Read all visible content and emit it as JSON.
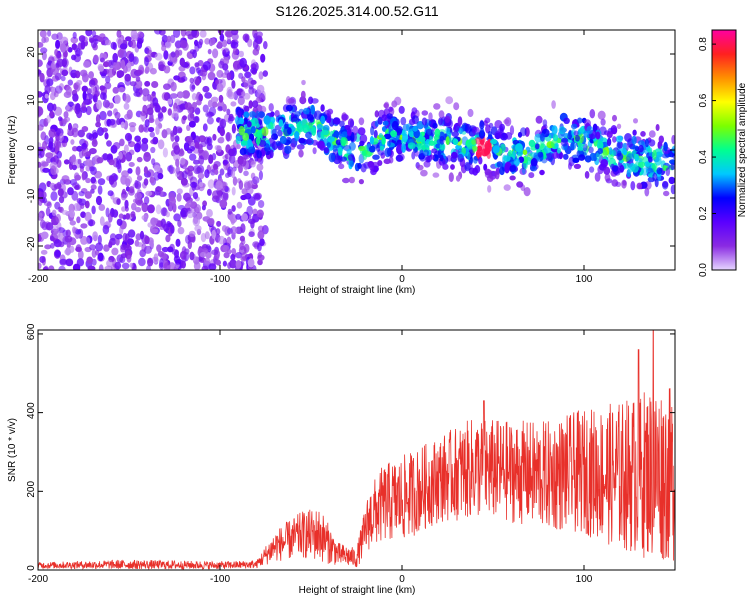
{
  "title": "S126.2025.314.00.52.G11",
  "chart_data": [
    {
      "type": "heatmap",
      "xlabel": "Height of straight line (km)",
      "ylabel": "Frequency (Hz)",
      "xlim": [
        -200,
        150
      ],
      "ylim": [
        -25,
        25
      ],
      "xticks": [
        -200,
        -100,
        0,
        100
      ],
      "yticks": [
        -20,
        -10,
        0,
        10,
        20
      ],
      "colorbar": {
        "label": "Normalized spectral amplitude",
        "range": [
          0,
          0.85
        ],
        "ticks": [
          "0.0",
          "0.2",
          "0.4",
          "0.6",
          "0.8"
        ],
        "colors": [
          "#e6d6ff",
          "#8a2be2",
          "#5a00ff",
          "#0000ff",
          "#00c8ff",
          "#00ff90",
          "#7cff00",
          "#ffff00",
          "#ff9000",
          "#ff2020",
          "#ff00a0"
        ]
      },
      "regions": [
        {
          "name": "broadband noise",
          "x_range": [
            -200,
            -75
          ],
          "freq_range": [
            -25,
            25
          ],
          "amplitude": 0.1
        },
        {
          "name": "signal band",
          "x_range": [
            -90,
            150
          ],
          "freq_range": [
            -5,
            8
          ],
          "amplitude": 0.35,
          "peak_amplitude": 0.8,
          "peak_x": 45,
          "peak_freq": 0
        }
      ],
      "signal_centre_freq": [
        {
          "x": -90,
          "f": 4
        },
        {
          "x": -70,
          "f": 3
        },
        {
          "x": -50,
          "f": 6
        },
        {
          "x": -40,
          "f": 3
        },
        {
          "x": -30,
          "f": 0
        },
        {
          "x": -20,
          "f": 0
        },
        {
          "x": -10,
          "f": 3
        },
        {
          "x": 0,
          "f": 3
        },
        {
          "x": 20,
          "f": 2
        },
        {
          "x": 40,
          "f": 1
        },
        {
          "x": 50,
          "f": 0
        },
        {
          "x": 70,
          "f": -1
        },
        {
          "x": 90,
          "f": 3
        },
        {
          "x": 110,
          "f": 0
        },
        {
          "x": 130,
          "f": -2
        },
        {
          "x": 150,
          "f": -3
        }
      ]
    },
    {
      "type": "line",
      "xlabel": "Height of straight line (km)",
      "ylabel": "SNR (10 * v/v)",
      "xlim": [
        -200,
        150
      ],
      "ylim": [
        0,
        610
      ],
      "xticks": [
        -200,
        -100,
        0,
        100
      ],
      "yticks": [
        0,
        200,
        400,
        600
      ],
      "series": [
        {
          "name": "SNR",
          "color": "#e8302a",
          "envelope": [
            {
              "x": -200,
              "mean": 12,
              "spread": 8
            },
            {
              "x": -150,
              "mean": 14,
              "spread": 12
            },
            {
              "x": -100,
              "mean": 12,
              "spread": 10
            },
            {
              "x": -80,
              "mean": 14,
              "spread": 10
            },
            {
              "x": -70,
              "mean": 60,
              "spread": 40
            },
            {
              "x": -55,
              "mean": 90,
              "spread": 60
            },
            {
              "x": -45,
              "mean": 90,
              "spread": 70
            },
            {
              "x": -35,
              "mean": 40,
              "spread": 30
            },
            {
              "x": -25,
              "mean": 30,
              "spread": 25
            },
            {
              "x": -18,
              "mean": 130,
              "spread": 80
            },
            {
              "x": -10,
              "mean": 170,
              "spread": 100
            },
            {
              "x": 0,
              "mean": 180,
              "spread": 110
            },
            {
              "x": 20,
              "mean": 230,
              "spread": 110
            },
            {
              "x": 40,
              "mean": 260,
              "spread": 130
            },
            {
              "x": 60,
              "mean": 250,
              "spread": 130
            },
            {
              "x": 80,
              "mean": 240,
              "spread": 140
            },
            {
              "x": 100,
              "mean": 250,
              "spread": 160
            },
            {
              "x": 120,
              "mean": 240,
              "spread": 190
            },
            {
              "x": 140,
              "mean": 250,
              "spread": 230
            },
            {
              "x": 150,
              "mean": 240,
              "spread": 220
            }
          ],
          "peaks": [
            {
              "x": 45,
              "y": 430
            },
            {
              "x": 130,
              "y": 560
            },
            {
              "x": 138,
              "y": 610
            }
          ]
        }
      ]
    }
  ]
}
